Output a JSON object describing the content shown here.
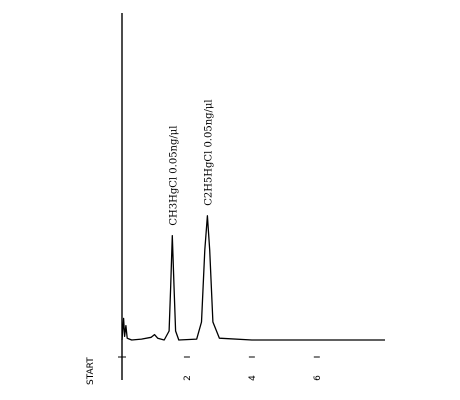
{
  "chart_data": {
    "type": "line",
    "title": "",
    "xlabel": "",
    "ylabel": "",
    "start_label": "START",
    "x_unit": "min",
    "xlim": [
      0,
      8.1
    ],
    "ylim": [
      0,
      1.0
    ],
    "x_ticks": [
      {
        "value": 2,
        "label": "2"
      },
      {
        "value": 4,
        "label": "4"
      },
      {
        "value": 6,
        "label": "6"
      }
    ],
    "series": [
      {
        "points": [
          [
            0.0,
            0.0
          ],
          [
            0.05,
            0.12
          ],
          [
            0.08,
            0.02
          ],
          [
            0.12,
            0.08
          ],
          [
            0.16,
            0.01
          ],
          [
            0.3,
            0.0
          ],
          [
            0.6,
            0.005
          ],
          [
            0.9,
            0.015
          ],
          [
            1.0,
            0.03
          ],
          [
            1.1,
            0.01
          ],
          [
            1.3,
            0.0
          ],
          [
            1.45,
            0.05
          ],
          [
            1.5,
            0.3
          ],
          [
            1.55,
            0.58
          ],
          [
            1.6,
            0.3
          ],
          [
            1.65,
            0.05
          ],
          [
            1.75,
            0.0
          ],
          [
            2.3,
            0.005
          ],
          [
            2.45,
            0.1
          ],
          [
            2.55,
            0.5
          ],
          [
            2.63,
            0.69
          ],
          [
            2.7,
            0.5
          ],
          [
            2.8,
            0.1
          ],
          [
            3.0,
            0.01
          ],
          [
            4.0,
            0.0
          ],
          [
            8.1,
            0.0
          ]
        ]
      }
    ],
    "peaks": [
      {
        "label": "CH3HgCl 0.05ng/μl",
        "x": 1.55,
        "y": 0.58
      },
      {
        "label": "C2H5HgCl 0.05ng/μl",
        "x": 2.63,
        "y": 0.69
      }
    ]
  }
}
